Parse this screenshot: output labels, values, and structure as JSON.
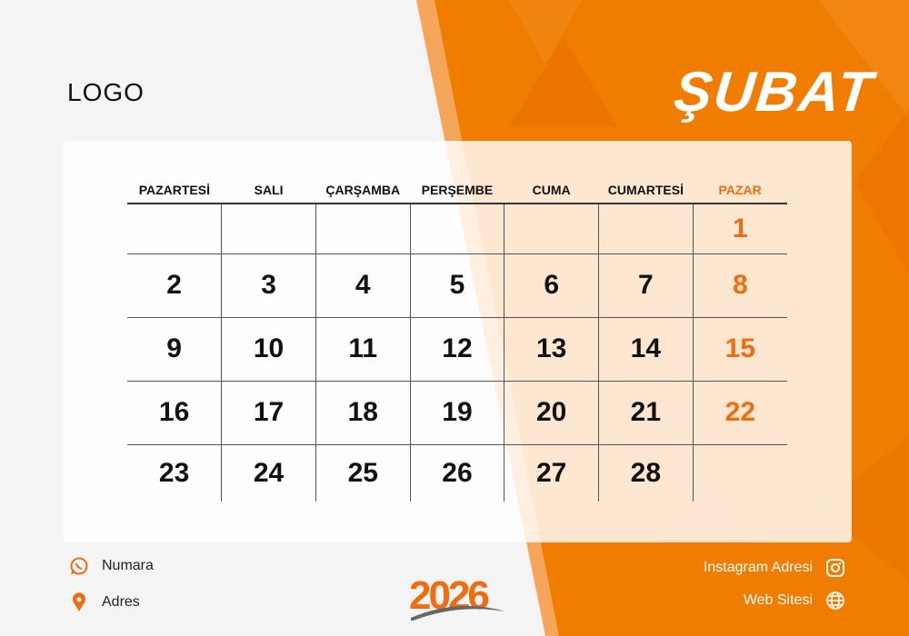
{
  "logo": "LOGO",
  "month": "ŞUBAT",
  "year": "2026",
  "colors": {
    "accent": "#f26b0f",
    "orange_bg": "#f07d00"
  },
  "weekdays": [
    "PAZARTESİ",
    "SALI",
    "ÇARŞAMBA",
    "PERŞEMBE",
    "CUMA",
    "CUMARTESİ",
    "PAZAR"
  ],
  "weeks": [
    [
      "",
      "",
      "",
      "",
      "",
      "",
      "1"
    ],
    [
      "2",
      "3",
      "4",
      "5",
      "6",
      "7",
      "8"
    ],
    [
      "9",
      "10",
      "11",
      "12",
      "13",
      "14",
      "15"
    ],
    [
      "16",
      "17",
      "18",
      "19",
      "20",
      "21",
      "22"
    ],
    [
      "23",
      "24",
      "25",
      "26",
      "27",
      "28",
      ""
    ]
  ],
  "contacts": {
    "phone": {
      "label": "Numara",
      "icon": "whatsapp-icon"
    },
    "address": {
      "label": "Adres",
      "icon": "location-pin-icon"
    },
    "instagram": {
      "label": "Instagram Adresi",
      "icon": "instagram-icon"
    },
    "web": {
      "label": "Web Sitesi",
      "icon": "globe-icon"
    }
  }
}
